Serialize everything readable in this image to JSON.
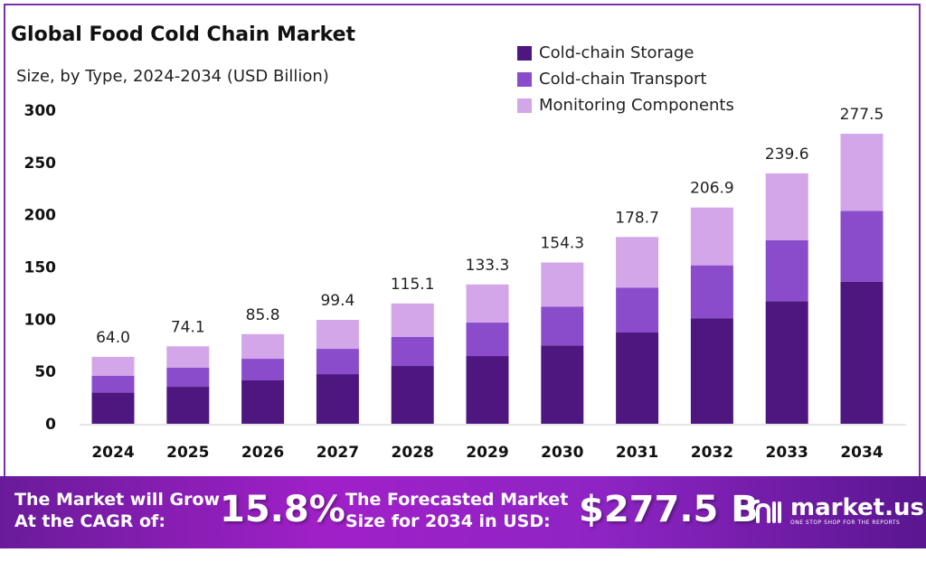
{
  "chart_data": {
    "type": "bar",
    "stacked": true,
    "title": "Global Food Cold Chain Market",
    "subtitle": "Size, by Type, 2024-2034 (USD Billion)",
    "categories": [
      "2024",
      "2025",
      "2026",
      "2027",
      "2028",
      "2029",
      "2030",
      "2031",
      "2032",
      "2033",
      "2034"
    ],
    "series": [
      {
        "name": "Cold-chain Storage",
        "color": "#4e1780",
        "values": [
          30.0,
          35.4,
          41.5,
          47.5,
          55.3,
          64.8,
          75.0,
          87.3,
          101.0,
          117.3,
          136.0
        ]
      },
      {
        "name": "Cold-chain Transport",
        "color": "#8a4ccb",
        "values": [
          16.0,
          18.2,
          20.7,
          24.2,
          27.7,
          32.0,
          37.0,
          43.0,
          50.6,
          58.2,
          67.7
        ]
      },
      {
        "name": "Monitoring Components",
        "color": "#d3a6ea",
        "values": [
          18.0,
          20.5,
          23.6,
          27.7,
          32.1,
          36.5,
          42.3,
          48.4,
          55.3,
          64.1,
          73.8
        ]
      }
    ],
    "totals": [
      "64.0",
      "74.1",
      "85.8",
      "99.4",
      "115.1",
      "133.3",
      "154.3",
      "178.7",
      "206.9",
      "239.6",
      "277.5"
    ],
    "ylim": [
      0,
      300
    ],
    "yticks": [
      "0",
      "50",
      "100",
      "150",
      "200",
      "250",
      "300"
    ],
    "grid": false,
    "legend_position": "top-right",
    "xlabel": "",
    "ylabel": ""
  },
  "banner": {
    "cagr_label_1": "The Market will Grow",
    "cagr_label_2": "At the CAGR of:",
    "cagr_value": "15.8%",
    "forecast_label_1": "The Forecasted Market",
    "forecast_label_2": "Size for 2034 in USD:",
    "forecast_value": "$277.5 B",
    "logo_name": "market.us",
    "logo_tagline": "ONE STOP SHOP FOR THE REPORTS"
  }
}
